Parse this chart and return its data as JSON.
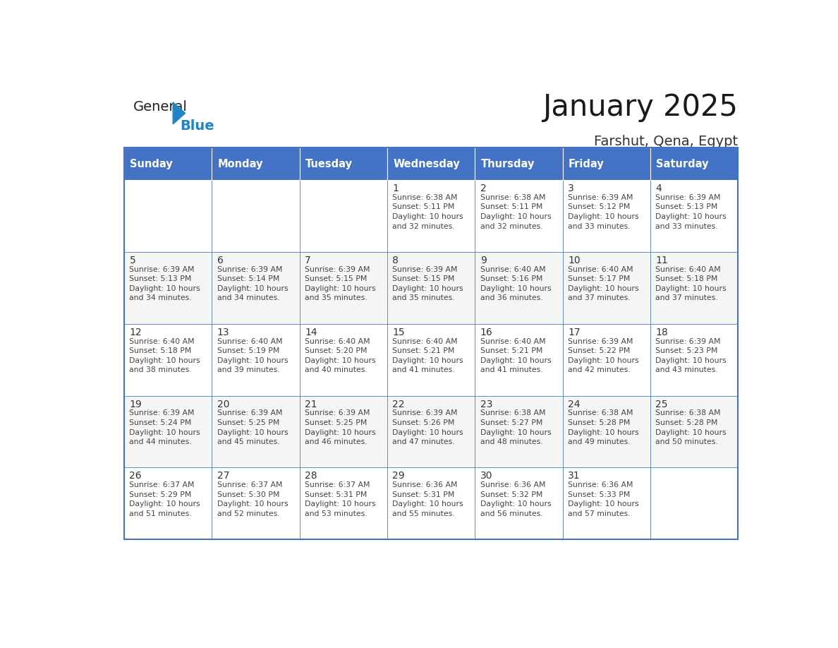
{
  "title": "January 2025",
  "subtitle": "Farshut, Qena, Egypt",
  "header_color": "#4472C4",
  "header_text_color": "#FFFFFF",
  "border_color": "#4472C4",
  "text_color": "#333333",
  "days_of_week": [
    "Sunday",
    "Monday",
    "Tuesday",
    "Wednesday",
    "Thursday",
    "Friday",
    "Saturday"
  ],
  "weeks": [
    [
      {
        "day": "",
        "info": ""
      },
      {
        "day": "",
        "info": ""
      },
      {
        "day": "",
        "info": ""
      },
      {
        "day": "1",
        "info": "Sunrise: 6:38 AM\nSunset: 5:11 PM\nDaylight: 10 hours\nand 32 minutes."
      },
      {
        "day": "2",
        "info": "Sunrise: 6:38 AM\nSunset: 5:11 PM\nDaylight: 10 hours\nand 32 minutes."
      },
      {
        "day": "3",
        "info": "Sunrise: 6:39 AM\nSunset: 5:12 PM\nDaylight: 10 hours\nand 33 minutes."
      },
      {
        "day": "4",
        "info": "Sunrise: 6:39 AM\nSunset: 5:13 PM\nDaylight: 10 hours\nand 33 minutes."
      }
    ],
    [
      {
        "day": "5",
        "info": "Sunrise: 6:39 AM\nSunset: 5:13 PM\nDaylight: 10 hours\nand 34 minutes."
      },
      {
        "day": "6",
        "info": "Sunrise: 6:39 AM\nSunset: 5:14 PM\nDaylight: 10 hours\nand 34 minutes."
      },
      {
        "day": "7",
        "info": "Sunrise: 6:39 AM\nSunset: 5:15 PM\nDaylight: 10 hours\nand 35 minutes."
      },
      {
        "day": "8",
        "info": "Sunrise: 6:39 AM\nSunset: 5:15 PM\nDaylight: 10 hours\nand 35 minutes."
      },
      {
        "day": "9",
        "info": "Sunrise: 6:40 AM\nSunset: 5:16 PM\nDaylight: 10 hours\nand 36 minutes."
      },
      {
        "day": "10",
        "info": "Sunrise: 6:40 AM\nSunset: 5:17 PM\nDaylight: 10 hours\nand 37 minutes."
      },
      {
        "day": "11",
        "info": "Sunrise: 6:40 AM\nSunset: 5:18 PM\nDaylight: 10 hours\nand 37 minutes."
      }
    ],
    [
      {
        "day": "12",
        "info": "Sunrise: 6:40 AM\nSunset: 5:18 PM\nDaylight: 10 hours\nand 38 minutes."
      },
      {
        "day": "13",
        "info": "Sunrise: 6:40 AM\nSunset: 5:19 PM\nDaylight: 10 hours\nand 39 minutes."
      },
      {
        "day": "14",
        "info": "Sunrise: 6:40 AM\nSunset: 5:20 PM\nDaylight: 10 hours\nand 40 minutes."
      },
      {
        "day": "15",
        "info": "Sunrise: 6:40 AM\nSunset: 5:21 PM\nDaylight: 10 hours\nand 41 minutes."
      },
      {
        "day": "16",
        "info": "Sunrise: 6:40 AM\nSunset: 5:21 PM\nDaylight: 10 hours\nand 41 minutes."
      },
      {
        "day": "17",
        "info": "Sunrise: 6:39 AM\nSunset: 5:22 PM\nDaylight: 10 hours\nand 42 minutes."
      },
      {
        "day": "18",
        "info": "Sunrise: 6:39 AM\nSunset: 5:23 PM\nDaylight: 10 hours\nand 43 minutes."
      }
    ],
    [
      {
        "day": "19",
        "info": "Sunrise: 6:39 AM\nSunset: 5:24 PM\nDaylight: 10 hours\nand 44 minutes."
      },
      {
        "day": "20",
        "info": "Sunrise: 6:39 AM\nSunset: 5:25 PM\nDaylight: 10 hours\nand 45 minutes."
      },
      {
        "day": "21",
        "info": "Sunrise: 6:39 AM\nSunset: 5:25 PM\nDaylight: 10 hours\nand 46 minutes."
      },
      {
        "day": "22",
        "info": "Sunrise: 6:39 AM\nSunset: 5:26 PM\nDaylight: 10 hours\nand 47 minutes."
      },
      {
        "day": "23",
        "info": "Sunrise: 6:38 AM\nSunset: 5:27 PM\nDaylight: 10 hours\nand 48 minutes."
      },
      {
        "day": "24",
        "info": "Sunrise: 6:38 AM\nSunset: 5:28 PM\nDaylight: 10 hours\nand 49 minutes."
      },
      {
        "day": "25",
        "info": "Sunrise: 6:38 AM\nSunset: 5:28 PM\nDaylight: 10 hours\nand 50 minutes."
      }
    ],
    [
      {
        "day": "26",
        "info": "Sunrise: 6:37 AM\nSunset: 5:29 PM\nDaylight: 10 hours\nand 51 minutes."
      },
      {
        "day": "27",
        "info": "Sunrise: 6:37 AM\nSunset: 5:30 PM\nDaylight: 10 hours\nand 52 minutes."
      },
      {
        "day": "28",
        "info": "Sunrise: 6:37 AM\nSunset: 5:31 PM\nDaylight: 10 hours\nand 53 minutes."
      },
      {
        "day": "29",
        "info": "Sunrise: 6:36 AM\nSunset: 5:31 PM\nDaylight: 10 hours\nand 55 minutes."
      },
      {
        "day": "30",
        "info": "Sunrise: 6:36 AM\nSunset: 5:32 PM\nDaylight: 10 hours\nand 56 minutes."
      },
      {
        "day": "31",
        "info": "Sunrise: 6:36 AM\nSunset: 5:33 PM\nDaylight: 10 hours\nand 57 minutes."
      },
      {
        "day": "",
        "info": ""
      }
    ]
  ],
  "logo_color_general": "#222222",
  "logo_color_blue": "#2185C5",
  "logo_triangle_color": "#2185C5"
}
